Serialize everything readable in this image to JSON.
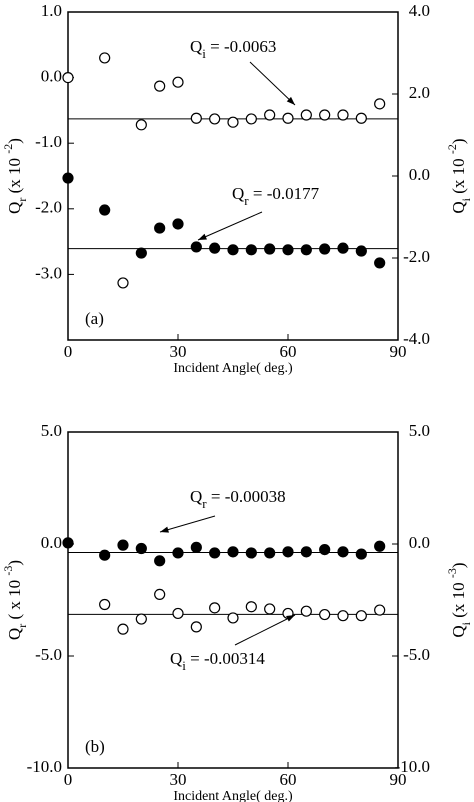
{
  "chart_data": [
    {
      "type": "scatter",
      "panel_label": "(a)",
      "xlabel": "Incident Angle( deg.)",
      "ylabel": [
        "Q",
        "r",
        " (x 10 ",
        "-2",
        ")"
      ],
      "y2label": [
        "Q",
        "i",
        " (x 10 ",
        "-2",
        ")"
      ],
      "x": [
        0,
        10,
        15,
        20,
        25,
        30,
        35,
        40,
        45,
        50,
        55,
        60,
        65,
        70,
        75,
        80,
        85
      ],
      "xlim": [
        0,
        90
      ],
      "xticks": [
        0,
        30,
        60,
        90
      ],
      "ylim": [
        -4,
        1
      ],
      "yticks": [
        {
          "value": 1,
          "label": "1.0"
        },
        {
          "value": 0,
          "label": "0.0"
        },
        {
          "value": -1,
          "label": "-1.0"
        },
        {
          "value": -2,
          "label": "-2.0"
        },
        {
          "value": -3,
          "label": "-3.0"
        }
      ],
      "y2lim": [
        -4,
        4
      ],
      "y2ticks": [
        {
          "value": 4,
          "label": "4.0"
        },
        {
          "value": 2,
          "label": "2.0"
        },
        {
          "value": 0,
          "label": "0.0"
        },
        {
          "value": -2,
          "label": "-2.0"
        },
        {
          "value": -4,
          "label": "-4.0"
        }
      ],
      "series": [
        {
          "color": "#000000",
          "marker": "open",
          "values": [
            0.0,
            0.3,
            -3.13,
            -0.72,
            -0.13,
            -0.07,
            -0.62,
            -0.63,
            -0.68,
            -0.63,
            -0.57,
            -0.62,
            -0.57,
            -0.57,
            -0.57,
            -0.62,
            -0.4
          ]
        },
        {
          "color": "#000000",
          "marker": "filled",
          "axis": "y2",
          "values": [
            -0.05,
            -0.83,
            null,
            -1.88,
            -1.27,
            -1.17,
            -1.73,
            -1.76,
            -1.8,
            -1.8,
            -1.78,
            -1.8,
            -1.8,
            -1.78,
            -1.76,
            -1.83,
            -2.12
          ]
        }
      ],
      "fit_lines": [
        {
          "value": -0.63
        },
        {
          "value": -1.77,
          "axis": "y2"
        }
      ],
      "annotations": [
        [
          "Q",
          "i",
          " = -0.0063"
        ],
        [
          "Q",
          "r",
          " = -0.0177"
        ]
      ]
    },
    {
      "type": "scatter",
      "panel_label": "(b)",
      "xlabel": "Incident Angle( deg.)",
      "ylabel": [
        "Q",
        "r",
        " ( x 10 ",
        "-3",
        ")"
      ],
      "y2label": [
        "Q",
        "i",
        " (x 10 ",
        "-3",
        ")"
      ],
      "x": [
        0,
        10,
        15,
        20,
        25,
        30,
        35,
        40,
        45,
        50,
        55,
        60,
        65,
        70,
        75,
        80,
        85
      ],
      "xlim": [
        0,
        90
      ],
      "xticks": [
        0,
        30,
        60,
        90
      ],
      "ylim": [
        -10,
        5
      ],
      "yticks": [
        {
          "value": 5,
          "label": "5.0"
        },
        {
          "value": 0,
          "label": "0.0"
        },
        {
          "value": -5,
          "label": "-5.0"
        },
        {
          "value": -10,
          "label": "-10.0"
        }
      ],
      "y2lim": [
        -10,
        5
      ],
      "y2ticks": [
        {
          "value": 5,
          "label": "5.0"
        },
        {
          "value": 0,
          "label": "0.0"
        },
        {
          "value": -5,
          "label": "-5.0"
        },
        {
          "value": -10,
          "label": "-10.0"
        }
      ],
      "series": [
        {
          "color": "#000000",
          "marker": "filled",
          "values": [
            0.05,
            -0.5,
            -0.05,
            -0.2,
            -0.75,
            -0.4,
            -0.15,
            -0.4,
            -0.35,
            -0.4,
            -0.4,
            -0.35,
            -0.35,
            -0.25,
            -0.35,
            -0.45,
            -0.1
          ]
        },
        {
          "color": "#000000",
          "marker": "open",
          "axis": "y2",
          "values": [
            null,
            -2.7,
            -3.8,
            -3.35,
            -2.25,
            -3.1,
            -3.7,
            -2.85,
            -3.3,
            -2.8,
            -2.9,
            -3.1,
            -3.0,
            -3.15,
            -3.2,
            -3.2,
            -2.95
          ]
        }
      ],
      "fit_lines": [
        {
          "value": -0.38
        },
        {
          "value": -3.14,
          "axis": "y2"
        }
      ],
      "annotations": [
        [
          "Q",
          "r",
          " = -0.00038"
        ],
        [
          "Q",
          "i",
          " = -0.00314"
        ]
      ]
    }
  ]
}
